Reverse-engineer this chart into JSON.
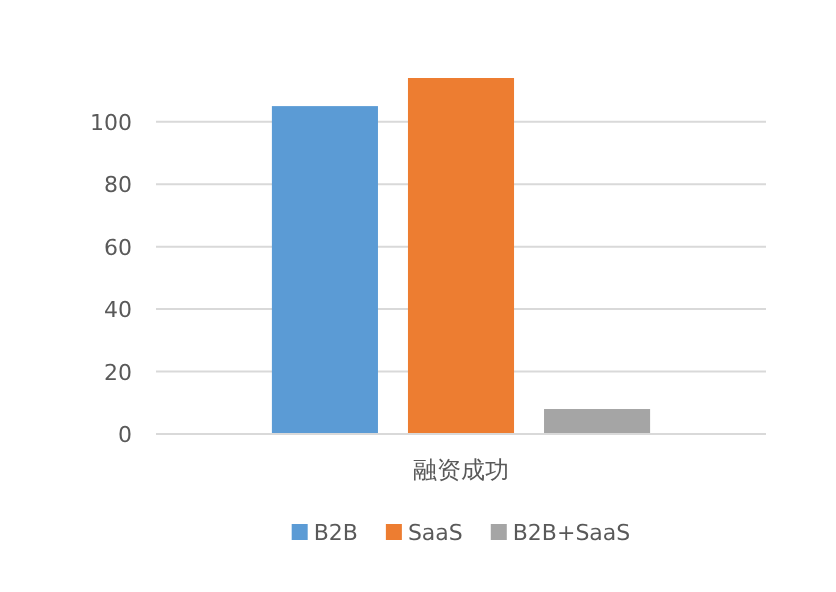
{
  "chart_data": {
    "type": "bar",
    "categories": [
      "融资成功"
    ],
    "series": [
      {
        "name": "B2B",
        "color": "#5b9bd5",
        "values": [
          105
        ]
      },
      {
        "name": "SaaS",
        "color": "#ed7d31",
        "values": [
          114
        ]
      },
      {
        "name": "B2B+SaaS",
        "color": "#a5a5a5",
        "values": [
          8
        ]
      }
    ],
    "ylim": [
      0,
      114
    ],
    "yticks": [
      0,
      20,
      40,
      60,
      80,
      100
    ],
    "grid": "y",
    "legend": "bottom"
  }
}
